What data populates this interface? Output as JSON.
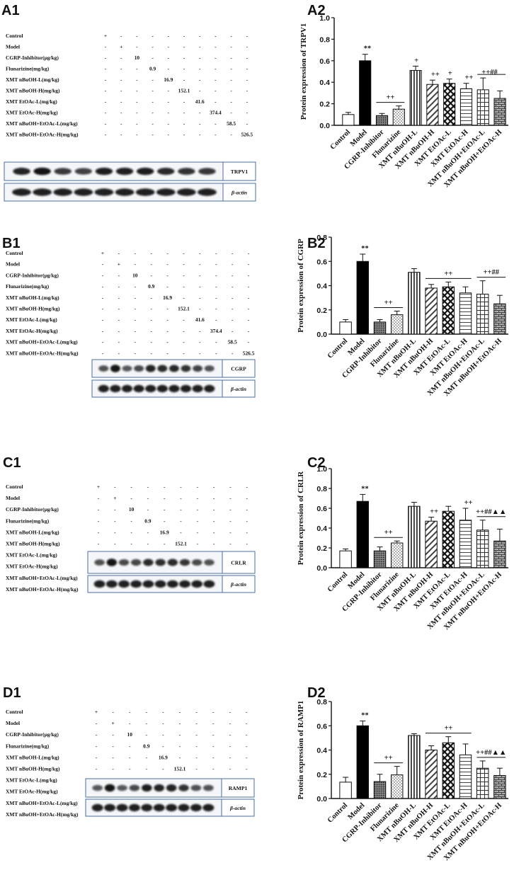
{
  "figure": {
    "doses": {
      "row_labels": [
        "Control",
        "Model",
        "CGRP-Inhibitor(μg/kg)",
        "Flunarizine(mg/kg)",
        "XMT nBuOH-L(mg/kg)",
        "XMT nBuOH-H(mg/kg)",
        "XMT EtOAc-L(mg/kg)",
        "XMT EtOAc-H(mg/kg)",
        "XMT nBuOH+EtOAc-L(mg/kg)",
        "XMT nBuOH+EtOAc-H(mg/kg)"
      ],
      "row_values": [
        "+",
        "+",
        "10",
        "0.9",
        "16.9",
        "152.1",
        "41.6",
        "374.4",
        "58.5",
        "526.5"
      ],
      "dash": "-"
    },
    "panels": [
      {
        "blot_label": "A1",
        "chart_label": "A2",
        "protein": "TRPV1",
        "loading_control": "β-actin",
        "band_intensity": [
          0.85,
          0.95,
          0.7,
          0.65,
          0.9,
          0.88,
          0.9,
          0.82,
          0.75,
          0.72
        ]
      },
      {
        "blot_label": "B1",
        "chart_label": "B2",
        "protein": "CGRP",
        "loading_control": "β-actin",
        "band_intensity": [
          0.55,
          0.95,
          0.5,
          0.6,
          0.85,
          0.8,
          0.82,
          0.75,
          0.65,
          0.55
        ]
      },
      {
        "blot_label": "C1",
        "chart_label": "C2",
        "protein": "CRLR",
        "loading_control": "β-actin",
        "band_intensity": [
          0.55,
          0.95,
          0.6,
          0.62,
          0.8,
          0.78,
          0.8,
          0.72,
          0.6,
          0.55
        ]
      },
      {
        "blot_label": "D1",
        "chart_label": "D2",
        "protein": "RAMP1",
        "loading_control": "β-actin",
        "band_intensity": [
          0.5,
          0.95,
          0.5,
          0.6,
          0.9,
          0.85,
          0.85,
          0.75,
          0.55,
          0.55
        ]
      }
    ]
  },
  "chart_data": [
    {
      "type": "bar",
      "title": "A2",
      "xlabel": "",
      "ylabel": "Protein expression of TRPV1",
      "ylim": [
        0,
        1.0
      ],
      "yticks": [
        "0.0",
        "0.2",
        "0.4",
        "0.6",
        "0.8",
        "1.0"
      ],
      "categories": [
        "Control",
        "Model",
        "CGRP-Inhibitor",
        "Flunarizine",
        "XMT nBuOH-L",
        "XMT nBuOH-H",
        "XMT EtOAc-L",
        "XMT EtOAc-H",
        "XMT nBuOH+EtOAc-L",
        "XMT nBuOH+EtOAc-H"
      ],
      "values": [
        0.1,
        0.6,
        0.09,
        0.15,
        0.51,
        0.38,
        0.39,
        0.34,
        0.33,
        0.25
      ],
      "errors": [
        0.02,
        0.06,
        0.02,
        0.03,
        0.04,
        0.04,
        0.04,
        0.05,
        0.11,
        0.07
      ],
      "annotations": [
        {
          "index": 1,
          "text": "**"
        },
        {
          "index": 4,
          "text": "+"
        },
        {
          "index": 5,
          "text": "++"
        },
        {
          "index": 6,
          "text": "+"
        },
        {
          "index": 7,
          "text": "++"
        },
        {
          "index": 8,
          "text": "++##"
        }
      ],
      "brackets": [
        {
          "from": 2,
          "to": 3,
          "text": "++"
        },
        {
          "from": 8,
          "to": 9,
          "text": ""
        }
      ]
    },
    {
      "type": "bar",
      "title": "B2",
      "xlabel": "",
      "ylabel": "Protein expression of CGRP",
      "ylim": [
        0,
        0.8
      ],
      "yticks": [
        "0.0",
        "0.2",
        "0.4",
        "0.6",
        "0.8"
      ],
      "categories": [
        "Control",
        "Model",
        "CGRP-Inhibitor",
        "Flunarizine",
        "XMT nBuOH-L",
        "XMT nBuOH-H",
        "XMT EtOAc-L",
        "XMT EtOAc-H",
        "XMT nBuOH+EtOAc-L",
        "XMT nBuOH+EtOAc-H"
      ],
      "values": [
        0.1,
        0.6,
        0.1,
        0.16,
        0.51,
        0.38,
        0.39,
        0.34,
        0.33,
        0.25
      ],
      "errors": [
        0.02,
        0.06,
        0.02,
        0.03,
        0.03,
        0.03,
        0.04,
        0.05,
        0.11,
        0.07
      ],
      "annotations": [
        {
          "index": 1,
          "text": "**"
        }
      ],
      "brackets": [
        {
          "from": 2,
          "to": 3,
          "text": "++"
        },
        {
          "from": 5,
          "to": 7,
          "text": "++"
        },
        {
          "from": 8,
          "to": 9,
          "text": "++##"
        }
      ]
    },
    {
      "type": "bar",
      "title": "C2",
      "xlabel": "",
      "ylabel": "Protein expression of CRLR",
      "ylim": [
        0,
        1.0
      ],
      "yticks": [
        "0.0",
        "0.2",
        "0.4",
        "0.6",
        "0.8",
        "1.0"
      ],
      "categories": [
        "Control",
        "Model",
        "CGRP-Inhibitor",
        "Flunarizine",
        "XMT nBuOH-L",
        "XMT nBuOH-H",
        "XMT EtOAc-L",
        "XMT EtOAc-H",
        "XMT nBuOH+EtOAc-L",
        "XMT nBuOH+EtOAc-H"
      ],
      "values": [
        0.17,
        0.67,
        0.17,
        0.25,
        0.62,
        0.47,
        0.57,
        0.48,
        0.38,
        0.27
      ],
      "errors": [
        0.02,
        0.07,
        0.04,
        0.02,
        0.04,
        0.04,
        0.05,
        0.12,
        0.1,
        0.12
      ],
      "annotations": [
        {
          "index": 1,
          "text": "**"
        },
        {
          "index": 5,
          "text": "++"
        },
        {
          "index": 7,
          "text": "++"
        }
      ],
      "brackets": [
        {
          "from": 2,
          "to": 3,
          "text": "++"
        },
        {
          "from": 8,
          "to": 9,
          "text": "++##▲▲"
        }
      ]
    },
    {
      "type": "bar",
      "title": "D2",
      "xlabel": "",
      "ylabel": "Protein expression of RAMP1",
      "ylim": [
        0,
        0.8
      ],
      "yticks": [
        "0.0",
        "0.2",
        "0.4",
        "0.6",
        "0.8"
      ],
      "categories": [
        "Control",
        "Model",
        "CGRP-Inhibitor",
        "Flunarizine",
        "XMT nBuOH-L",
        "XMT nBuOH-H",
        "XMT EtOAc-L",
        "XMT EtOAc-H",
        "XMT nBuOH+EtOAc-L",
        "XMT nBuOH+EtOAc-H"
      ],
      "values": [
        0.135,
        0.6,
        0.14,
        0.195,
        0.52,
        0.4,
        0.46,
        0.36,
        0.25,
        0.19
      ],
      "errors": [
        0.04,
        0.04,
        0.06,
        0.07,
        0.015,
        0.035,
        0.05,
        0.09,
        0.06,
        0.06
      ],
      "annotations": [
        {
          "index": 1,
          "text": "**"
        }
      ],
      "brackets": [
        {
          "from": 2,
          "to": 3,
          "text": "++"
        },
        {
          "from": 5,
          "to": 7,
          "text": "++"
        },
        {
          "from": 8,
          "to": 9,
          "text": "++##▲▲"
        }
      ]
    }
  ]
}
